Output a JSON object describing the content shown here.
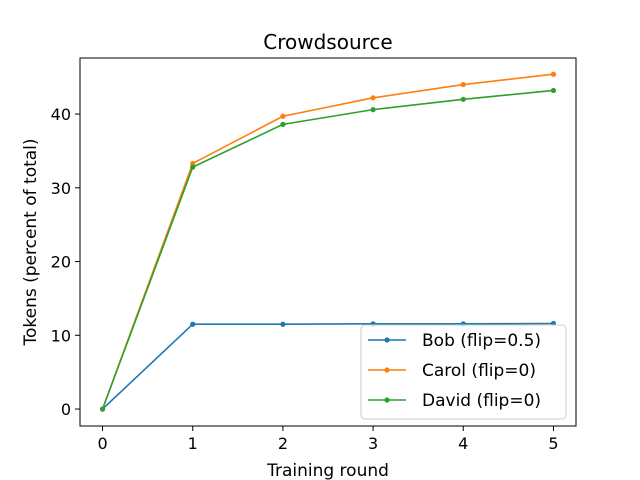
{
  "chart_data": {
    "type": "line",
    "title": "Crowdsource",
    "xlabel": "Training round",
    "ylabel": "Tokens (percent of total)",
    "x": [
      0,
      1,
      2,
      3,
      4,
      5
    ],
    "xlim": [
      -0.25,
      5.25
    ],
    "ylim": [
      -2.3,
      47.6
    ],
    "xticks": [
      0,
      1,
      2,
      3,
      4,
      5
    ],
    "yticks": [
      0,
      10,
      20,
      30,
      40
    ],
    "grid": false,
    "legend_position": "lower-right",
    "series": [
      {
        "name": "Bob (flip=0.5)",
        "color": "#1f77b4",
        "marker": "dot",
        "values": [
          0,
          11.5,
          11.5,
          11.55,
          11.55,
          11.6
        ]
      },
      {
        "name": "Carol (flip=0)",
        "color": "#ff7f0e",
        "marker": "dot",
        "values": [
          0,
          33.3,
          39.7,
          42.2,
          44.0,
          45.4
        ]
      },
      {
        "name": "David (flip=0)",
        "color": "#2ca02c",
        "marker": "dot",
        "values": [
          0,
          32.8,
          38.6,
          40.6,
          42.0,
          43.2
        ]
      }
    ]
  }
}
